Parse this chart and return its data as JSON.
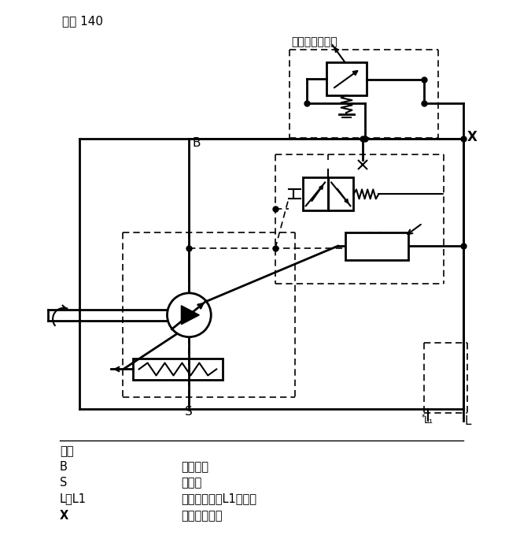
{
  "title": "规格 140",
  "subtitle": "不在供货范围内",
  "label_X": "X",
  "label_B": "B",
  "label_S": "S",
  "label_L": "L",
  "label_L1": "L₁",
  "port_title": "油口",
  "port_B": "B",
  "port_B_desc": "压力油口",
  "port_S": "S",
  "port_S_desc": "进油口",
  "port_LL1": "L，L1",
  "port_LL1_desc": "壳体泄油口（L1堵死）",
  "port_X": "X",
  "port_X_desc": "先导压力油口",
  "line_color": "#000000",
  "bg_color": "#ffffff",
  "figsize": [
    6.47,
    6.84
  ],
  "dpi": 100
}
